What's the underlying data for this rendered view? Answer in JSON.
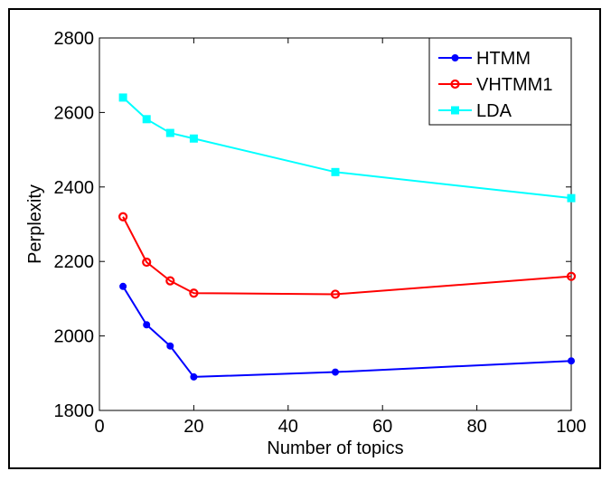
{
  "chart_data": {
    "type": "line",
    "title": "",
    "xlabel": "Number of topics",
    "ylabel": "Perplexity",
    "xlim": [
      0,
      100
    ],
    "ylim": [
      1800,
      2800
    ],
    "xticks": [
      0,
      20,
      40,
      60,
      80,
      100
    ],
    "yticks": [
      1800,
      2000,
      2200,
      2400,
      2600,
      2800
    ],
    "x": [
      5,
      10,
      15,
      20,
      50,
      100
    ],
    "grid": false,
    "legend_position": "top-right",
    "series": [
      {
        "name": "HTMM",
        "color": "#0000ff",
        "marker": "filled-circle",
        "values": [
          2133,
          2030,
          1973,
          1890,
          1903,
          1933
        ]
      },
      {
        "name": "VHTMM1",
        "color": "#ff0000",
        "marker": "open-circle",
        "values": [
          2320,
          2198,
          2148,
          2115,
          2112,
          2160
        ]
      },
      {
        "name": "LDA",
        "color": "#00ffff",
        "marker": "square",
        "values": [
          2640,
          2582,
          2545,
          2530,
          2440,
          2370
        ]
      }
    ]
  }
}
